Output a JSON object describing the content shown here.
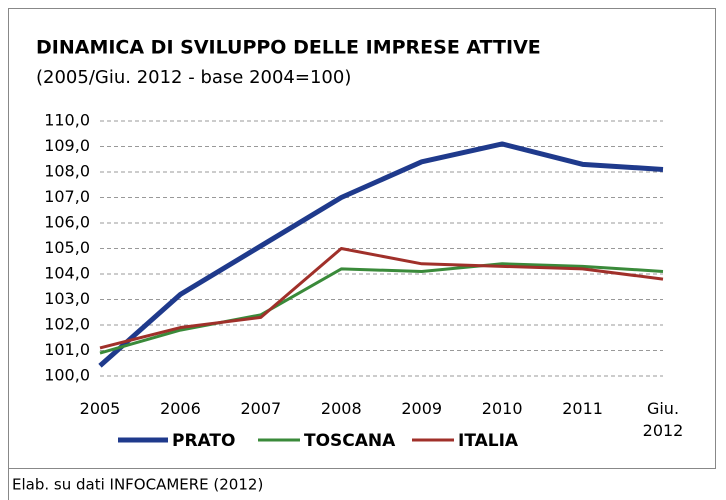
{
  "chart_data": {
    "type": "line",
    "title": "DINAMICA DI SVILUPPO DELLE IMPRESE ATTIVE",
    "subtitle": "(2005/Giu. 2012 - base 2004=100)",
    "categories": [
      "2005",
      "2006",
      "2007",
      "2008",
      "2009",
      "2010",
      "2011",
      "Giu. 2012"
    ],
    "series": [
      {
        "name": "PRATO",
        "color": "#1f3a8c",
        "values": [
          100.4,
          103.2,
          105.1,
          107.0,
          108.4,
          109.1,
          108.3,
          108.1
        ]
      },
      {
        "name": "TOSCANA",
        "color": "#3a8a3a",
        "values": [
          100.9,
          101.8,
          102.4,
          104.2,
          104.1,
          104.4,
          104.3,
          104.1
        ]
      },
      {
        "name": "ITALIA",
        "color": "#a0302a",
        "values": [
          101.1,
          101.9,
          102.3,
          105.0,
          104.4,
          104.3,
          104.2,
          103.8
        ]
      }
    ],
    "ylim": [
      100,
      110
    ],
    "yticks": [
      {
        "value": 100,
        "label": "100,0"
      },
      {
        "value": 101,
        "label": "101,0"
      },
      {
        "value": 102,
        "label": "102,0"
      },
      {
        "value": 103,
        "label": "103,0"
      },
      {
        "value": 104,
        "label": "104,0"
      },
      {
        "value": 105,
        "label": "105,0"
      },
      {
        "value": 106,
        "label": "106,0"
      },
      {
        "value": 107,
        "label": "107,0"
      },
      {
        "value": 108,
        "label": "108,0"
      },
      {
        "value": 109,
        "label": "109,0"
      },
      {
        "value": 110,
        "label": "110,0"
      }
    ],
    "grid": true,
    "legend": "bottom",
    "source": "Elab. su dati INFOCAMERE (2012)"
  }
}
